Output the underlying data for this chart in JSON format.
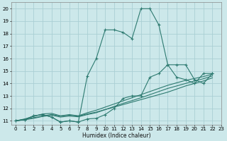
{
  "xlabel": "Humidex (Indice chaleur)",
  "bg_color": "#cce8ea",
  "grid_color": "#aacfd4",
  "line_color": "#2d7a70",
  "xlim": [
    -0.5,
    23
  ],
  "ylim": [
    10.7,
    20.5
  ],
  "xtick_labels": [
    "0",
    "1",
    "2",
    "3",
    "4",
    "5",
    "6",
    "7",
    "8",
    "9",
    "10",
    "11",
    "12",
    "13",
    "14",
    "15",
    "16",
    "17",
    "18",
    "19",
    "20",
    "21",
    "22",
    "23"
  ],
  "xticks": [
    0,
    1,
    2,
    3,
    4,
    5,
    6,
    7,
    8,
    9,
    10,
    11,
    12,
    13,
    14,
    15,
    16,
    17,
    18,
    19,
    20,
    21,
    22,
    23
  ],
  "yticks": [
    11,
    12,
    13,
    14,
    15,
    16,
    17,
    18,
    19,
    20
  ],
  "series": [
    {
      "x": [
        0,
        1,
        2,
        3,
        4,
        5,
        6,
        7,
        8,
        9,
        10,
        11,
        12,
        13,
        14,
        15,
        16,
        17,
        18,
        19,
        20,
        21,
        22
      ],
      "y": [
        11.0,
        11.1,
        11.4,
        11.5,
        11.3,
        10.9,
        11.0,
        10.9,
        14.6,
        16.0,
        18.3,
        18.3,
        18.1,
        17.6,
        20.0,
        20.0,
        18.7,
        15.5,
        14.5,
        14.3,
        14.0,
        14.8,
        14.8
      ],
      "marker": true
    },
    {
      "x": [
        0,
        1,
        2,
        3,
        4,
        5,
        6,
        7,
        8,
        9,
        10,
        11,
        12,
        13,
        14,
        15,
        16,
        17,
        18,
        19,
        20,
        21,
        22
      ],
      "y": [
        11.0,
        11.1,
        11.4,
        11.5,
        11.3,
        10.9,
        11.0,
        10.9,
        11.15,
        11.2,
        11.5,
        12.0,
        12.8,
        13.0,
        13.0,
        14.5,
        14.8,
        15.5,
        15.5,
        15.5,
        14.3,
        14.0,
        14.8
      ],
      "marker": true
    },
    {
      "x": [
        0,
        1,
        2,
        3,
        4,
        5,
        6,
        7,
        8,
        9,
        10,
        11,
        12,
        13,
        14,
        15,
        16,
        17,
        18,
        19,
        20,
        21,
        22
      ],
      "y": [
        11.0,
        11.12,
        11.25,
        11.38,
        11.51,
        11.38,
        11.45,
        11.38,
        11.55,
        11.7,
        11.9,
        12.1,
        12.3,
        12.5,
        12.7,
        12.9,
        13.1,
        13.3,
        13.55,
        13.8,
        14.0,
        14.2,
        14.45
      ],
      "marker": false
    },
    {
      "x": [
        0,
        1,
        2,
        3,
        4,
        5,
        6,
        7,
        8,
        9,
        10,
        11,
        12,
        13,
        14,
        15,
        16,
        17,
        18,
        19,
        20,
        21,
        22
      ],
      "y": [
        11.0,
        11.15,
        11.35,
        11.55,
        11.6,
        11.4,
        11.5,
        11.4,
        11.65,
        11.85,
        12.1,
        12.35,
        12.6,
        12.85,
        13.1,
        13.35,
        13.6,
        13.85,
        14.05,
        14.25,
        14.4,
        14.55,
        14.75
      ],
      "marker": false
    },
    {
      "x": [
        0,
        1,
        2,
        3,
        4,
        5,
        6,
        7,
        8,
        9,
        10,
        11,
        12,
        13,
        14,
        15,
        16,
        17,
        18,
        19,
        20,
        21,
        22
      ],
      "y": [
        11.0,
        11.08,
        11.2,
        11.35,
        11.45,
        11.3,
        11.38,
        11.32,
        11.5,
        11.65,
        11.9,
        12.15,
        12.4,
        12.62,
        12.85,
        13.1,
        13.35,
        13.6,
        13.8,
        14.0,
        14.2,
        14.38,
        14.6
      ],
      "marker": false
    }
  ]
}
